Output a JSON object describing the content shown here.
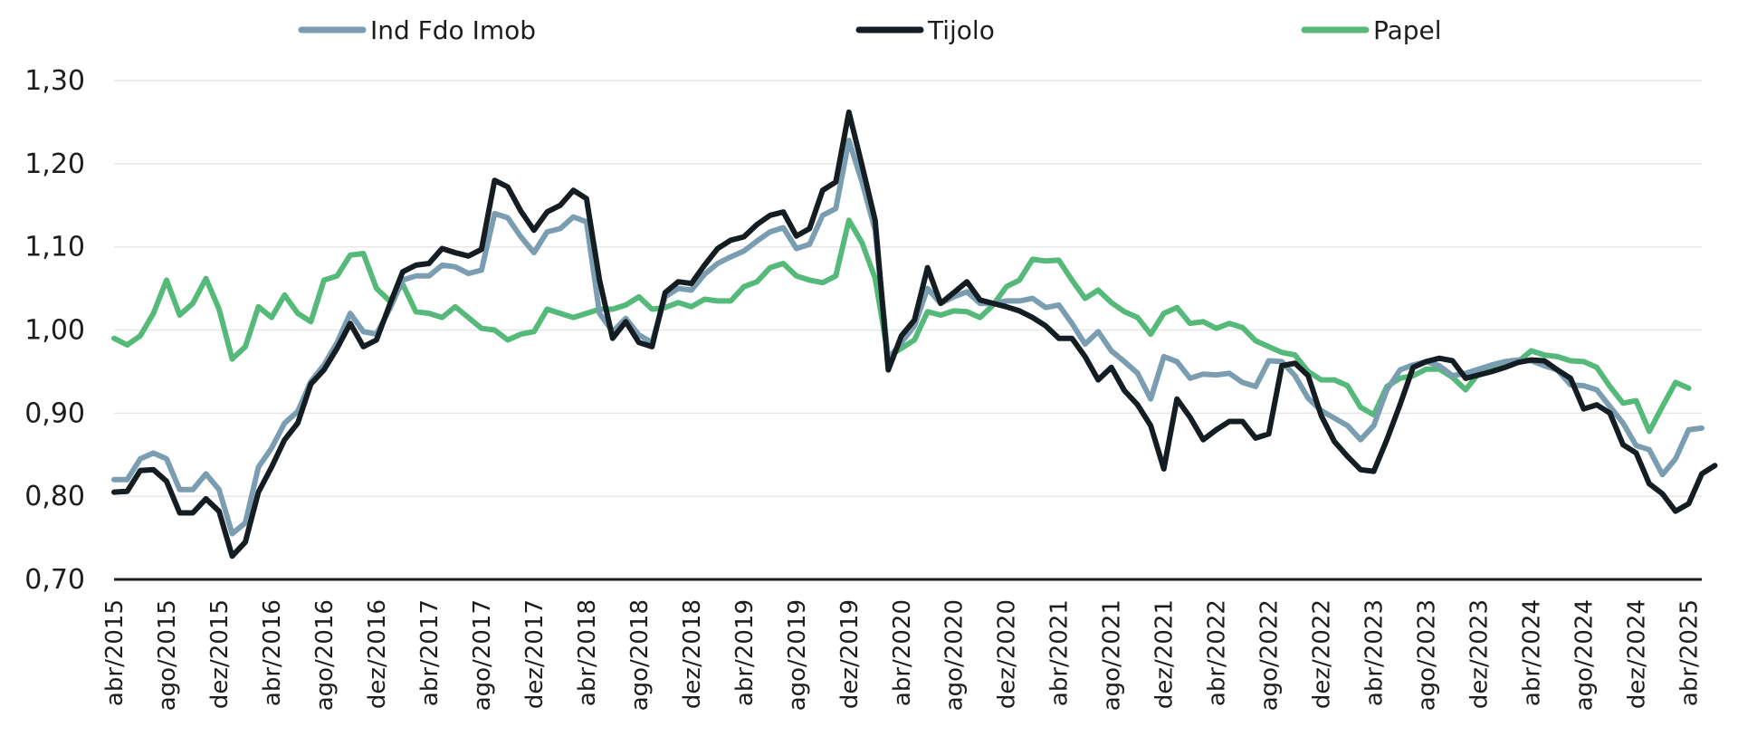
{
  "chart_data": {
    "type": "line",
    "title": "",
    "xlabel": "",
    "ylabel": "",
    "ylim": [
      0.7,
      1.3
    ],
    "yticks": [
      "0,70",
      "0,80",
      "0,90",
      "1,00",
      "1,10",
      "1,20",
      "1,30"
    ],
    "grid": true,
    "legend_position": "top",
    "x_tick_labels": [
      "abr/2015",
      "ago/2015",
      "dez/2015",
      "abr/2016",
      "ago/2016",
      "dez/2016",
      "abr/2017",
      "ago/2017",
      "dez/2017",
      "abr/2018",
      "ago/2018",
      "dez/2018",
      "abr/2019",
      "ago/2019",
      "dez/2019",
      "abr/2020",
      "ago/2020",
      "dez/2020",
      "abr/2021",
      "ago/2021",
      "dez/2021",
      "abr/2022",
      "ago/2022",
      "dez/2022",
      "abr/2023",
      "ago/2023",
      "dez/2023",
      "abr/2024",
      "ago/2024",
      "dez/2024",
      "abr/2025"
    ],
    "x_start": "2015-04",
    "x_end": "2025-05",
    "series": [
      {
        "name": "Ind Fdo Imob",
        "color": "#7a9db2",
        "values": [
          0.82,
          0.82,
          0.845,
          0.852,
          0.845,
          0.808,
          0.808,
          0.827,
          0.808,
          0.755,
          0.768,
          0.835,
          0.858,
          0.888,
          0.902,
          0.938,
          0.958,
          0.985,
          1.02,
          0.998,
          0.995,
          1.025,
          1.06,
          1.065,
          1.065,
          1.078,
          1.076,
          1.068,
          1.072,
          1.14,
          1.135,
          1.112,
          1.093,
          1.118,
          1.122,
          1.136,
          1.13,
          1.02,
          0.998,
          1.014,
          0.994,
          0.985,
          1.04,
          1.05,
          1.048,
          1.067,
          1.08,
          1.088,
          1.095,
          1.107,
          1.118,
          1.123,
          1.098,
          1.103,
          1.138,
          1.146,
          1.228,
          1.178,
          1.12,
          0.965,
          0.985,
          1.005,
          1.05,
          1.032,
          1.04,
          1.046,
          1.032,
          1.032,
          1.035,
          1.035,
          1.038,
          1.027,
          1.03,
          1.008,
          0.983,
          0.998,
          0.975,
          0.962,
          0.948,
          0.917,
          0.968,
          0.962,
          0.942,
          0.947,
          0.946,
          0.948,
          0.937,
          0.932,
          0.963,
          0.962,
          0.945,
          0.918,
          0.903,
          0.894,
          0.885,
          0.868,
          0.885,
          0.928,
          0.952,
          0.958,
          0.962,
          0.957,
          0.945,
          0.948,
          0.953,
          0.958,
          0.962,
          0.964,
          0.963,
          0.957,
          0.952,
          0.934,
          0.933,
          0.928,
          0.908,
          0.888,
          0.861,
          0.856,
          0.826,
          0.845,
          0.88,
          0.882
        ]
      },
      {
        "name": "Tijolo",
        "color": "#141d22",
        "values": [
          0.805,
          0.806,
          0.831,
          0.832,
          0.818,
          0.78,
          0.78,
          0.797,
          0.782,
          0.728,
          0.745,
          0.805,
          0.835,
          0.868,
          0.888,
          0.935,
          0.952,
          0.978,
          1.008,
          0.98,
          0.988,
          1.03,
          1.07,
          1.078,
          1.08,
          1.098,
          1.093,
          1.089,
          1.097,
          1.18,
          1.172,
          1.143,
          1.12,
          1.142,
          1.15,
          1.168,
          1.158,
          1.06,
          0.99,
          1.01,
          0.985,
          0.98,
          1.045,
          1.058,
          1.056,
          1.078,
          1.098,
          1.108,
          1.112,
          1.127,
          1.138,
          1.142,
          1.113,
          1.122,
          1.168,
          1.178,
          1.262,
          1.198,
          1.132,
          0.952,
          0.993,
          1.012,
          1.075,
          1.032,
          1.045,
          1.058,
          1.036,
          1.032,
          1.028,
          1.023,
          1.015,
          1.005,
          0.99,
          0.99,
          0.968,
          0.94,
          0.955,
          0.927,
          0.91,
          0.885,
          0.833,
          0.917,
          0.895,
          0.868,
          0.88,
          0.89,
          0.89,
          0.87,
          0.875,
          0.957,
          0.96,
          0.945,
          0.897,
          0.866,
          0.848,
          0.832,
          0.83,
          0.868,
          0.91,
          0.955,
          0.962,
          0.966,
          0.963,
          0.942,
          0.946,
          0.95,
          0.955,
          0.961,
          0.964,
          0.963,
          0.952,
          0.942,
          0.905,
          0.91,
          0.9,
          0.862,
          0.852,
          0.815,
          0.803,
          0.782,
          0.791,
          0.827,
          0.837
        ]
      },
      {
        "name": "Papel",
        "color": "#54b979",
        "values": [
          0.99,
          0.982,
          0.993,
          1.02,
          1.06,
          1.018,
          1.032,
          1.062,
          1.025,
          0.965,
          0.98,
          1.028,
          1.015,
          1.042,
          1.02,
          1.01,
          1.06,
          1.065,
          1.09,
          1.092,
          1.05,
          1.035,
          1.055,
          1.022,
          1.02,
          1.015,
          1.028,
          1.015,
          1.002,
          1.0,
          0.988,
          0.995,
          0.998,
          1.025,
          1.02,
          1.015,
          1.02,
          1.025,
          1.025,
          1.03,
          1.04,
          1.025,
          1.027,
          1.033,
          1.028,
          1.037,
          1.035,
          1.035,
          1.052,
          1.058,
          1.075,
          1.08,
          1.065,
          1.06,
          1.057,
          1.065,
          1.132,
          1.105,
          1.062,
          0.968,
          0.978,
          0.988,
          1.022,
          1.018,
          1.023,
          1.022,
          1.015,
          1.03,
          1.052,
          1.06,
          1.085,
          1.083,
          1.084,
          1.06,
          1.038,
          1.048,
          1.033,
          1.022,
          1.015,
          0.995,
          1.02,
          1.027,
          1.008,
          1.01,
          1.002,
          1.008,
          1.003,
          0.987,
          0.98,
          0.973,
          0.97,
          0.95,
          0.94,
          0.94,
          0.933,
          0.907,
          0.898,
          0.932,
          0.942,
          0.945,
          0.953,
          0.953,
          0.943,
          0.928,
          0.948,
          0.955,
          0.958,
          0.962,
          0.975,
          0.97,
          0.968,
          0.963,
          0.962,
          0.955,
          0.932,
          0.912,
          0.915,
          0.878,
          0.908,
          0.937,
          0.93
        ]
      }
    ]
  }
}
